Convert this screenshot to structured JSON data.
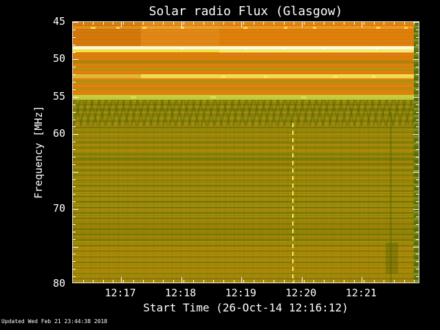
{
  "chart_data": {
    "type": "heatmap",
    "subtype": "solar-radio-spectrogram",
    "title": "Solar radio Flux (Glasgow)",
    "xlabel": "Start Time (26-Oct-14 12:16:12)",
    "ylabel": "Frequency [MHz]",
    "updated": "Updated Wed Feb 21 23:44:38 2018",
    "y_axis": {
      "min": 45,
      "max": 80,
      "unit": "MHz",
      "inverted": true,
      "minor_step": 1,
      "major_ticks": [
        {
          "f": 45,
          "label": "45"
        },
        {
          "f": 50,
          "label": "50"
        },
        {
          "f": 55,
          "label": "55"
        },
        {
          "f": 60,
          "label": "60"
        },
        {
          "f": 65,
          "label": ""
        },
        {
          "f": 70,
          "label": "70"
        },
        {
          "f": 75,
          "label": ""
        },
        {
          "f": 80,
          "label": "80"
        }
      ]
    },
    "x_axis": {
      "start_time": "12:16:12",
      "start_date": "26-Oct-14",
      "span_seconds": 346,
      "minor_step_seconds": 10,
      "major_ticks": [
        {
          "s": 48,
          "label": "12:17"
        },
        {
          "s": 108,
          "label": "12:18"
        },
        {
          "s": 168,
          "label": "12:19"
        },
        {
          "s": 228,
          "label": "12:20"
        },
        {
          "s": 288,
          "label": "12:21"
        }
      ]
    },
    "colors": {
      "background": "#000000",
      "frame": "#ededed",
      "text": "#ffffff",
      "body_base": "#a08d0c",
      "interference_orange": "#df7f0b",
      "interference_white": "#fdf9d2"
    },
    "bands": [
      {
        "f0": 45.0,
        "f1": 45.55,
        "c": "#e0830d"
      },
      {
        "f0": 45.55,
        "f1": 45.95,
        "c": "#ea9a20"
      },
      {
        "f0": 45.95,
        "f1": 48.25,
        "c": "#df7f0b"
      },
      {
        "f0": 48.25,
        "f1": 48.65,
        "c": "#fdf9d2"
      },
      {
        "f0": 48.65,
        "f1": 49.05,
        "c": "#f4e244"
      },
      {
        "f0": 49.05,
        "f1": 50.15,
        "c": "#dd7f0c"
      },
      {
        "f0": 50.15,
        "f1": 50.55,
        "c": "#a8850a"
      },
      {
        "f0": 50.55,
        "f1": 51.15,
        "c": "#d9830f"
      },
      {
        "f0": 51.15,
        "f1": 51.45,
        "c": "#b29310"
      },
      {
        "f0": 51.45,
        "f1": 51.95,
        "c": "#dd820e"
      },
      {
        "f0": 51.95,
        "f1": 52.55,
        "c": "#f0df52"
      },
      {
        "f0": 52.55,
        "f1": 52.85,
        "c": "#d8820f"
      },
      {
        "f0": 52.85,
        "f1": 53.15,
        "c": "#ae9212"
      },
      {
        "f0": 53.15,
        "f1": 53.85,
        "c": "#df830d"
      },
      {
        "f0": 53.85,
        "f1": 54.05,
        "c": "#b58e10"
      },
      {
        "f0": 54.05,
        "f1": 54.75,
        "c": "#e0830d"
      },
      {
        "f0": 54.75,
        "f1": 55.35,
        "c": "#c6cf3e"
      },
      {
        "f0": 55.35,
        "f1": 80.0,
        "c": "#9d8c0a"
      }
    ],
    "dark_stripes": {
      "color": "rgba(95,105,0,0.45)",
      "height_mhz": 0.22,
      "f": [
        55.9,
        56.6,
        57.3,
        58.1,
        59.0,
        59.6,
        60.3,
        61.0,
        61.7,
        62.5,
        63.2,
        63.9,
        64.7,
        65.4,
        66.1,
        66.8,
        67.5,
        68.2,
        68.9,
        69.7,
        70.4,
        71.1,
        71.9,
        72.6,
        73.3,
        74.0,
        74.8,
        75.5,
        76.3,
        77.0,
        77.8,
        78.5,
        79.2
      ]
    },
    "warm_stripes": {
      "color": "rgba(214,128,10,0.38)",
      "height_mhz": 0.18,
      "f": [
        58.6,
        60.0,
        61.3,
        62.1,
        63.5,
        64.3,
        65.8,
        67.1,
        68.5,
        70.0,
        71.5,
        72.2,
        73.7,
        75.1,
        76.7,
        78.1,
        79.6
      ]
    },
    "texture_regions": [
      {
        "f0": 45.0,
        "f1": 55.35,
        "cls": "tex-top"
      },
      {
        "f0": 55.35,
        "f1": 80.0,
        "cls": "tex-body"
      },
      {
        "f0": 55.35,
        "f1": 80.0,
        "cls": "tex-vert"
      },
      {
        "f0": 55.4,
        "f1": 58.9,
        "cls": "tex-wavy"
      }
    ],
    "patches": [
      {
        "t0": 0,
        "t1": 68,
        "f0": 45.0,
        "f1": 48.25,
        "c": "rgba(0,0,0,0.05)"
      },
      {
        "t0": 68,
        "t1": 146,
        "f0": 45.0,
        "f1": 48.25,
        "c": "rgba(255,236,170,0.07)"
      },
      {
        "t0": 146,
        "t1": 346,
        "f0": 48.2,
        "f1": 49.1,
        "c": "rgba(255,255,215,0.28)"
      },
      {
        "t0": 0,
        "t1": 68,
        "f0": 51.95,
        "f1": 52.55,
        "c": "rgba(205,125,12,0.40)"
      },
      {
        "t0": 0,
        "t1": 346,
        "f0": 62.6,
        "f1": 64.3,
        "c": "rgba(80,92,0,0.10)"
      },
      {
        "t0": 0,
        "t1": 346,
        "f0": 71.6,
        "f1": 74.2,
        "c": "rgba(80,92,0,0.10)"
      },
      {
        "t0": 0,
        "t1": 346,
        "f0": 74.8,
        "f1": 80.0,
        "c": "rgba(225,130,10,0.13)"
      },
      {
        "t0": 312,
        "t1": 324,
        "f0": 74.5,
        "f1": 78.6,
        "c": "rgba(60,85,0,0.28)"
      }
    ],
    "vlines": [
      {
        "t": 219,
        "f0": 58.5,
        "f1": 80,
        "color": "#f0f55e",
        "width": 2,
        "dashed": true
      },
      {
        "t": 317,
        "f0": 57.0,
        "f1": 80,
        "color": "rgba(70,95,0,0.35)",
        "width": 3,
        "dashed": false
      }
    ],
    "blips": [
      {
        "t": 20,
        "f": 45.75,
        "w": 7,
        "c": "#ffd84a"
      },
      {
        "t": 45,
        "f": 45.75,
        "w": 5,
        "c": "#ffd84a"
      },
      {
        "t": 71,
        "f": 45.75,
        "w": 6,
        "c": "#ffd84a"
      },
      {
        "t": 109,
        "f": 45.75,
        "w": 5,
        "c": "#ffd84a"
      },
      {
        "t": 172,
        "f": 45.75,
        "w": 6,
        "c": "#ffd84a"
      },
      {
        "t": 212,
        "f": 45.75,
        "w": 5,
        "c": "#ffd84a"
      },
      {
        "t": 241,
        "f": 45.75,
        "w": 5,
        "c": "#ffd84a"
      },
      {
        "t": 304,
        "f": 45.75,
        "w": 6,
        "c": "#ffd84a"
      },
      {
        "t": 332,
        "f": 45.75,
        "w": 5,
        "c": "#ffd84a"
      },
      {
        "t": 108,
        "f": 48.5,
        "w": 4,
        "c": "#ffffff"
      },
      {
        "t": 172,
        "f": 48.5,
        "w": 4,
        "c": "#ffffff"
      },
      {
        "t": 211,
        "f": 48.5,
        "w": 4,
        "c": "#ffffff"
      },
      {
        "t": 250,
        "f": 48.5,
        "w": 4,
        "c": "#ffffff"
      },
      {
        "t": 303,
        "f": 48.5,
        "w": 4,
        "c": "#ffffff"
      },
      {
        "t": 150,
        "f": 52.25,
        "w": 6,
        "c": "#f6ea6e"
      },
      {
        "t": 192,
        "f": 52.25,
        "w": 5,
        "c": "#f6ea6e"
      },
      {
        "t": 262,
        "f": 52.25,
        "w": 6,
        "c": "#f6ea6e"
      },
      {
        "t": 300,
        "f": 52.25,
        "w": 5,
        "c": "#f6ea6e"
      },
      {
        "t": 60,
        "f": 55.0,
        "w": 8,
        "c": "#d8de52"
      },
      {
        "t": 140,
        "f": 55.0,
        "w": 8,
        "c": "#d8de52"
      },
      {
        "t": 230,
        "f": 55.0,
        "w": 8,
        "c": "#d8de52"
      }
    ],
    "edge_column": {
      "t0": 340
    }
  }
}
